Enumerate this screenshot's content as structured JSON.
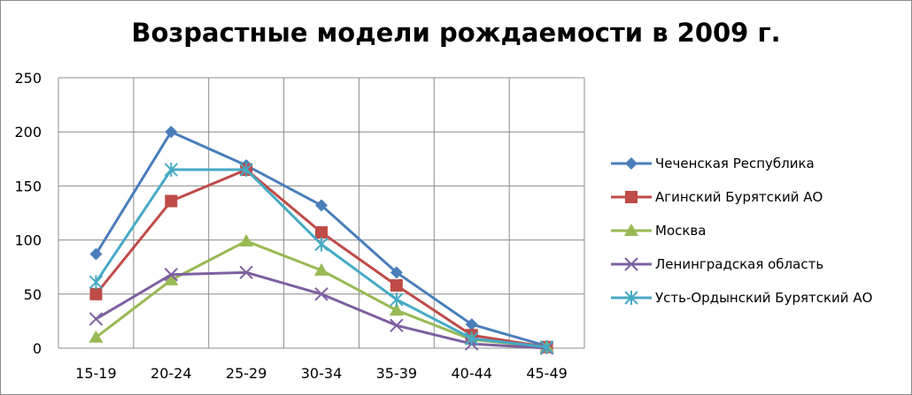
{
  "chart_data": {
    "type": "line",
    "title": "Возрастные модели рождаемости в 2009 г.",
    "xlabel": "",
    "ylabel": "",
    "categories": [
      "15-19",
      "20-24",
      "25-29",
      "30-34",
      "35-39",
      "40-44",
      "45-49"
    ],
    "ylim": [
      0,
      250
    ],
    "yticks": [
      0,
      50,
      100,
      150,
      200,
      250
    ],
    "grid": true,
    "legend_position": "right",
    "series": [
      {
        "name": "Чеченская Республика",
        "color": "#4a7ebb",
        "marker": "diamond",
        "values": [
          87,
          200,
          169,
          132,
          70,
          22,
          2
        ]
      },
      {
        "name": "Агинский Бурятский АО",
        "color": "#be4b48",
        "marker": "square",
        "values": [
          50,
          136,
          165,
          107,
          58,
          12,
          1
        ]
      },
      {
        "name": "Москва",
        "color": "#98b954",
        "marker": "triangle",
        "values": [
          10,
          63,
          99,
          72,
          35,
          8,
          1
        ]
      },
      {
        "name": "Ленинградская область",
        "color": "#7d60a0",
        "marker": "x",
        "values": [
          27,
          68,
          70,
          50,
          21,
          4,
          0
        ]
      },
      {
        "name": "Усть-Ордынский Бурятский АО",
        "color": "#46aac5",
        "marker": "star",
        "values": [
          61,
          165,
          165,
          96,
          45,
          9,
          1
        ]
      }
    ]
  }
}
